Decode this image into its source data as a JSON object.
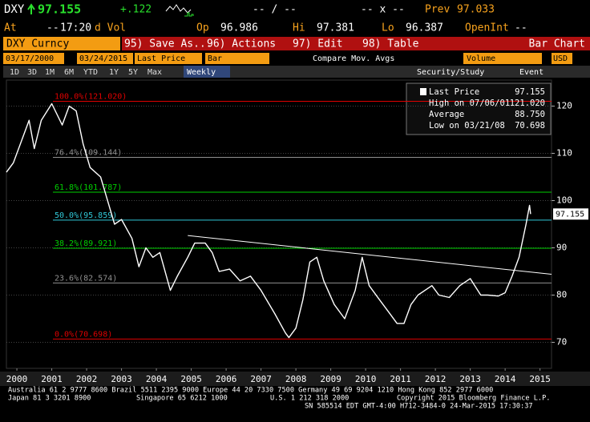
{
  "header": {
    "ticker": "DXY",
    "last": "97.155",
    "change": "+.122",
    "bidask": "-- / --",
    "size": "-- x --",
    "prev_label": "Prev",
    "prev": "97.033",
    "row2": [
      {
        "label": "At",
        "value": "17:20"
      },
      {
        "label": "d Vol",
        "value": "--"
      },
      {
        "label": "Op",
        "value": "96.986"
      },
      {
        "label": "Hi",
        "value": "97.381"
      },
      {
        "label": "Lo",
        "value": "96.387"
      },
      {
        "label": "OpenInt",
        "value": "--"
      }
    ]
  },
  "toolbar": {
    "security": "DXY Curncy",
    "buttons": [
      "95) Save As...",
      "96) Actions",
      "97) Edit",
      "98) Table"
    ],
    "view": "Bar Chart",
    "start_date": "03/17/2000",
    "end_date": "03/24/2015",
    "field": "Last Price",
    "style": "Bar",
    "compare": "Compare Mov. Avgs",
    "lower": "Volume",
    "currency": "USD",
    "periods": [
      "1D",
      "3D",
      "1M",
      "6M",
      "YTD",
      "1Y",
      "5Y",
      "Max"
    ],
    "frequency": "Weekly",
    "study": "Security/Study",
    "event": "Event"
  },
  "chart_data": {
    "type": "line",
    "x": [
      2000.2,
      2000.4,
      2000.6,
      2000.85,
      2001.0,
      2001.2,
      2001.5,
      2001.8,
      2002.0,
      2002.2,
      2002.4,
      2002.6,
      2002.9,
      2003.1,
      2003.3,
      2003.5,
      2003.8,
      2004.0,
      2004.2,
      2004.4,
      2004.6,
      2004.9,
      2005.1,
      2005.4,
      2005.6,
      2005.9,
      2006.1,
      2006.3,
      2006.6,
      2006.9,
      2007.2,
      2007.5,
      2007.9,
      2008.2,
      2008.3,
      2008.5,
      2008.7,
      2008.9,
      2009.1,
      2009.3,
      2009.6,
      2009.9,
      2010.2,
      2010.4,
      2010.6,
      2010.9,
      2011.2,
      2011.4,
      2011.6,
      2011.8,
      2012.0,
      2012.4,
      2012.6,
      2012.9,
      2013.2,
      2013.5,
      2013.8,
      2014.0,
      2014.3,
      2014.5,
      2014.7,
      2014.9,
      2015.1,
      2015.2,
      2015.23
    ],
    "series": [
      {
        "name": "Last Price",
        "color": "#ffffff",
        "values": [
          106,
          108,
          112,
          117,
          111,
          117,
          120.5,
          116,
          120,
          119,
          112,
          107,
          105,
          100,
          95,
          96,
          92,
          86,
          90,
          88,
          89,
          81,
          84,
          88,
          91,
          91,
          89,
          85,
          85.5,
          83,
          84,
          81,
          76,
          72,
          71,
          73,
          79,
          87,
          88,
          83,
          78,
          75,
          81,
          88,
          82,
          79,
          76,
          74,
          74,
          78,
          80,
          82,
          80,
          79.5,
          82,
          83.5,
          80,
          80,
          79.8,
          80.5,
          84,
          88,
          95,
          99,
          97.155
        ]
      }
    ],
    "xlim": [
      2000.2,
      2015.83
    ],
    "xticks": [
      {
        "value": 2000.5,
        "label": "2000"
      },
      {
        "value": 2001.5,
        "label": "2001"
      },
      {
        "value": 2002.5,
        "label": "2002"
      },
      {
        "value": 2003.5,
        "label": "2003"
      },
      {
        "value": 2004.5,
        "label": "2004"
      },
      {
        "value": 2005.5,
        "label": "2005"
      },
      {
        "value": 2006.5,
        "label": "2006"
      },
      {
        "value": 2007.5,
        "label": "2007"
      },
      {
        "value": 2008.5,
        "label": "2008"
      },
      {
        "value": 2009.5,
        "label": "2009"
      },
      {
        "value": 2010.5,
        "label": "2010"
      },
      {
        "value": 2011.5,
        "label": "2011"
      },
      {
        "value": 2012.5,
        "label": "2012"
      },
      {
        "value": 2013.5,
        "label": "2013"
      },
      {
        "value": 2014.5,
        "label": "2014"
      },
      {
        "value": 2015.5,
        "label": "2015"
      }
    ],
    "ylim": [
      64.5,
      125.5
    ],
    "yticks": [
      70,
      80,
      90,
      100,
      110,
      120
    ],
    "grid": true,
    "fib_levels": [
      {
        "label": "100.0%(121.020)",
        "value": 121.02,
        "color": "#e00000"
      },
      {
        "label": "76.4%(109.144)",
        "value": 109.144,
        "color": "#909090"
      },
      {
        "label": "61.8%(101.787)",
        "value": 101.787,
        "color": "#00d000"
      },
      {
        "label": "50.0%(95.859)",
        "value": 95.859,
        "color": "#30c8d8"
      },
      {
        "label": "38.2%(89.921)",
        "value": 89.921,
        "color": "#00d000"
      },
      {
        "label": "23.6%(82.574)",
        "value": 82.574,
        "color": "#909090"
      },
      {
        "label": "0.0%(70.698)",
        "value": 70.698,
        "color": "#e00000"
      }
    ],
    "trendline": {
      "x": [
        2005.4,
        2015.83
      ],
      "y": [
        92.6,
        84.4
      ]
    },
    "legend": [
      {
        "label": "Last Price",
        "value": "97.155"
      },
      {
        "label": "High on 07/06/01",
        "value": "121.020"
      },
      {
        "label": "Average",
        "value": "88.750"
      },
      {
        "label": "Low on 03/21/08",
        "value": "70.698"
      }
    ]
  },
  "footer": {
    "line1": "Australia 61 2 9777 8600 Brazil 5511 2395 9000 Europe 44 20 7330 7500 Germany 49 69 9204 1210 Hong Kong 852 2977 6000",
    "line2": [
      "Japan 81 3 3201 8900",
      "Singapore 65 6212 1000",
      "U.S. 1 212 318 2000",
      "Copyright 2015 Bloomberg Finance L.P."
    ],
    "line3": "SN 585514 EDT  GMT-4:00 H712-3484-0 24-Mar-2015 17:30:37"
  }
}
